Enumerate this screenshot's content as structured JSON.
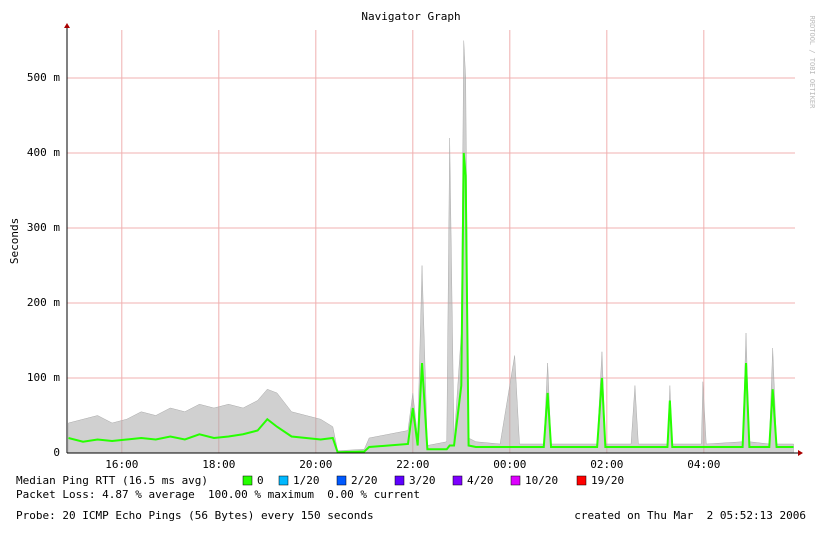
{
  "chart_data": {
    "type": "smokeping",
    "title": "Navigator Graph",
    "y_label": "Seconds",
    "side_text": "RRDTOOL / TOBI OETIKER",
    "xlim": [
      14.87,
      29.88
    ],
    "xticks": [
      {
        "value": 16,
        "label": "16:00"
      },
      {
        "value": 18,
        "label": "18:00"
      },
      {
        "value": 20,
        "label": "20:00"
      },
      {
        "value": 22,
        "label": "22:00"
      },
      {
        "value": 24,
        "label": "00:00"
      },
      {
        "value": 26,
        "label": "02:00"
      },
      {
        "value": 28,
        "label": "04:00"
      }
    ],
    "ylim": [
      0,
      564
    ],
    "yticks": [
      0,
      {
        "value": 100,
        "label": "100 m"
      },
      {
        "value": 200,
        "label": "200 m"
      },
      {
        "value": 300,
        "label": "300 m"
      },
      {
        "value": 400,
        "label": "400 m"
      },
      {
        "value": 500,
        "label": "500 m"
      }
    ],
    "grid": true,
    "x": [
      14.9,
      15.2,
      15.5,
      15.8,
      16.1,
      16.4,
      16.7,
      17.0,
      17.3,
      17.6,
      17.9,
      18.2,
      18.5,
      18.8,
      19.0,
      19.2,
      19.5,
      19.8,
      20.1,
      20.35,
      20.45,
      21.0,
      21.1,
      21.5,
      21.9,
      22.0,
      22.1,
      22.19,
      22.3,
      22.7,
      22.76,
      22.85,
      23.0,
      23.05,
      23.09,
      23.15,
      23.3,
      23.8,
      24.1,
      24.2,
      24.7,
      24.78,
      24.85,
      25.8,
      25.9,
      25.97,
      26.5,
      26.58,
      26.65,
      27.25,
      27.3,
      27.35,
      27.95,
      27.98,
      28.05,
      28.8,
      28.87,
      28.94,
      29.35,
      29.42,
      29.5,
      29.85
    ],
    "series": [
      {
        "color": "#aaaaaa",
        "values": [
          40,
          45,
          50,
          40,
          45,
          55,
          50,
          60,
          55,
          65,
          60,
          65,
          60,
          70,
          85,
          80,
          55,
          50,
          45,
          35,
          3,
          5,
          20,
          25,
          30,
          80,
          20,
          250,
          10,
          15,
          420,
          15,
          160,
          550,
          500,
          20,
          15,
          12,
          130,
          12,
          12,
          120,
          12,
          12,
          135,
          12,
          12,
          90,
          12,
          12,
          90,
          12,
          12,
          95,
          12,
          15,
          160,
          15,
          12,
          140,
          12,
          12
        ]
      },
      {
        "color": "#26ff00",
        "values": [
          20,
          15,
          18,
          16,
          18,
          20,
          18,
          22,
          18,
          25,
          20,
          22,
          25,
          30,
          45,
          35,
          22,
          20,
          18,
          20,
          1,
          2,
          8,
          10,
          12,
          60,
          10,
          120,
          5,
          5,
          10,
          10,
          90,
          400,
          370,
          10,
          8,
          8,
          8,
          8,
          8,
          80,
          8,
          8,
          100,
          8,
          8,
          8,
          8,
          8,
          70,
          8,
          8,
          8,
          8,
          8,
          120,
          8,
          8,
          85,
          8,
          8
        ]
      }
    ],
    "legend_title": "Median Ping RTT (16.5 ms avg)",
    "legend": [
      {
        "name": "0",
        "color": "#26ff00"
      },
      {
        "name": "1/20",
        "color": "#00b8ff"
      },
      {
        "name": "2/20",
        "color": "#0059ff"
      },
      {
        "name": "3/20",
        "color": "#5e00ff"
      },
      {
        "name": "4/20",
        "color": "#7e00ff"
      },
      {
        "name": "10/20",
        "color": "#dd00ff"
      },
      {
        "name": "19/20",
        "color": "#ff0000"
      }
    ],
    "packet_loss": "Packet Loss: 4.87 % average  100.00 % maximum  0.00 % current",
    "probe": "Probe: 20 ICMP Echo Pings (56 Bytes) every 150 seconds",
    "created": "created on Thu Mar  2 05:52:13 2006"
  }
}
